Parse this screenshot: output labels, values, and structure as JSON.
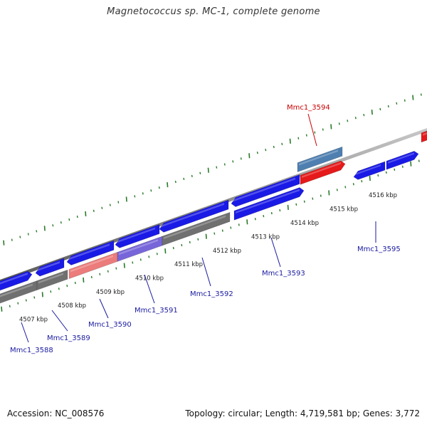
{
  "title": "Magnetococcus sp. MC-1, complete genome",
  "footer": {
    "accession": "Accession: NC_008576",
    "summary": "Topology: circular; Length: 4,719,581 bp; Genes: 3,772"
  },
  "colors": {
    "forward_cds": "#1a1ae6",
    "reverse_gene": "#707070",
    "highlight_red": "#e61a1a",
    "highlight_steel": "#4f7fb0",
    "pink": "#ec7b7b",
    "violet": "#7766d9",
    "tick_green": "#2a7a2a",
    "label_blue": "#1a1aa0",
    "label_red": "#cc0000"
  },
  "kbp_labels": [
    "4507 kbp",
    "4508 kbp",
    "4509 kbp",
    "4510 kbp",
    "4511 kbp",
    "4512 kbp",
    "4513 kbp",
    "4514 kbp",
    "4515 kbp",
    "4516 kbp"
  ],
  "gene_labels": [
    {
      "name": "Mmc1_3588",
      "color": "blue"
    },
    {
      "name": "Mmc1_3589",
      "color": "blue"
    },
    {
      "name": "Mmc1_3590",
      "color": "blue"
    },
    {
      "name": "Mmc1_3591",
      "color": "blue"
    },
    {
      "name": "Mmc1_3592",
      "color": "blue"
    },
    {
      "name": "Mmc1_3593",
      "color": "blue"
    },
    {
      "name": "Mmc1_3594",
      "color": "red"
    },
    {
      "name": "Mmc1_3595",
      "color": "blue"
    }
  ]
}
